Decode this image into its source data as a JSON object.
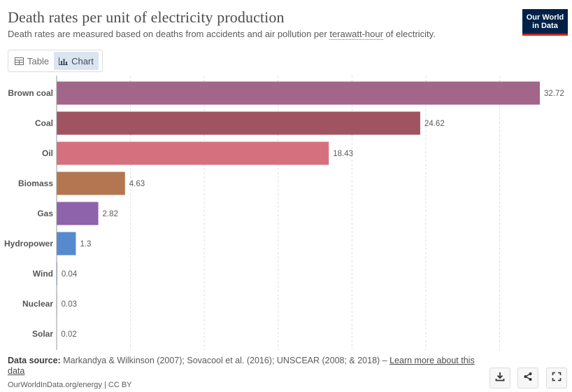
{
  "header": {
    "title": "Death rates per unit of electricity production",
    "subtitle_pre": "Death rates are measured based on deaths from accidents and air pollution per ",
    "subtitle_term": "terawatt-hour",
    "subtitle_post": " of electricity.",
    "logo_line1": "Our World",
    "logo_line2": "in Data"
  },
  "tabs": [
    {
      "label": "Table",
      "icon": "table-icon",
      "active": false
    },
    {
      "label": "Chart",
      "icon": "bar-chart-icon",
      "active": true
    }
  ],
  "chart_data": {
    "type": "bar",
    "orientation": "horizontal",
    "categories": [
      "Brown coal",
      "Coal",
      "Oil",
      "Biomass",
      "Gas",
      "Hydropower",
      "Wind",
      "Nuclear",
      "Solar"
    ],
    "values": [
      32.72,
      24.62,
      18.43,
      4.63,
      2.82,
      1.3,
      0.04,
      0.03,
      0.02
    ],
    "value_labels": [
      "32.72",
      "24.62",
      "18.43",
      "4.63",
      "2.82",
      "1.3",
      "0.04",
      "0.03",
      "0.02"
    ],
    "colors": [
      "#a2668a",
      "#a05361",
      "#d5717f",
      "#b47651",
      "#8f62ac",
      "#5789cf",
      "#5789cf",
      "#5789cf",
      "#5789cf"
    ],
    "xlim": [
      0,
      32.72
    ],
    "gridlines": [
      0,
      5,
      10,
      15,
      20,
      25,
      30
    ],
    "grid": true,
    "title": "Death rates per unit of electricity production",
    "xlabel": "",
    "ylabel": ""
  },
  "footer": {
    "source_label": "Data source:",
    "source_text": " Markandya & Wilkinson (2007); Sovacool et al. (2016); UNSCEAR (2008; & 2018) – ",
    "source_link": "Learn more about this data",
    "credit": "OurWorldInData.org/energy | CC BY"
  },
  "actions": {
    "download_icon": "download-icon",
    "share_icon": "share-icon",
    "fullscreen_icon": "fullscreen-icon"
  }
}
